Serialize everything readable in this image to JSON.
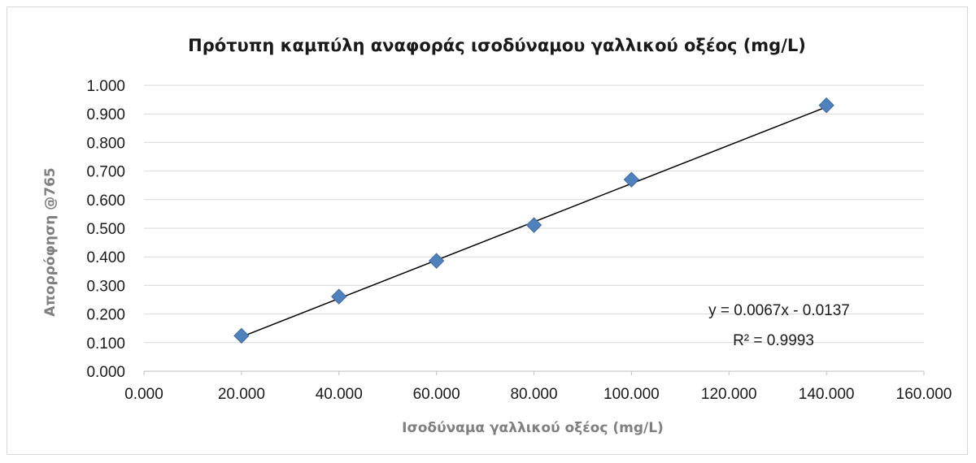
{
  "chart_data": {
    "type": "scatter",
    "title": "Πρότυπη καμπύλη αναφοράς ισοδύναμου γαλλικού οξέος (mg/L)",
    "xlabel": "Ισοδύναμα γαλλικού οξέος (mg/L)",
    "ylabel": "Απορρόφηση @765",
    "xlim": [
      0,
      160
    ],
    "ylim": [
      0,
      1
    ],
    "x_ticks": [
      0,
      20,
      40,
      60,
      80,
      100,
      120,
      140,
      160
    ],
    "x_tick_labels": [
      "0.000",
      "20.000",
      "40.000",
      "60.000",
      "80.000",
      "100.000",
      "120.000",
      "140.000",
      "160.000"
    ],
    "y_ticks": [
      0,
      0.1,
      0.2,
      0.3,
      0.4,
      0.5,
      0.6,
      0.7,
      0.8,
      0.9,
      1.0
    ],
    "y_tick_labels": [
      "0.000",
      "0.100",
      "0.200",
      "0.300",
      "0.400",
      "0.500",
      "0.600",
      "0.700",
      "0.800",
      "0.900",
      "1.000"
    ],
    "grid": "horizontal",
    "series": [
      {
        "x": [
          20,
          40,
          60,
          80,
          100,
          140
        ],
        "y": [
          0.124,
          0.261,
          0.386,
          0.511,
          0.67,
          0.93
        ],
        "marker": "diamond",
        "color": "#4f81bd"
      }
    ],
    "trendline": {
      "type": "linear",
      "slope": 0.0067,
      "intercept": -0.0137,
      "x_range": [
        20,
        140
      ],
      "color": "#000000"
    },
    "annotations": {
      "equation": "y = 0.0067x - 0.0137",
      "r_squared": "R² = 0.9993"
    }
  }
}
